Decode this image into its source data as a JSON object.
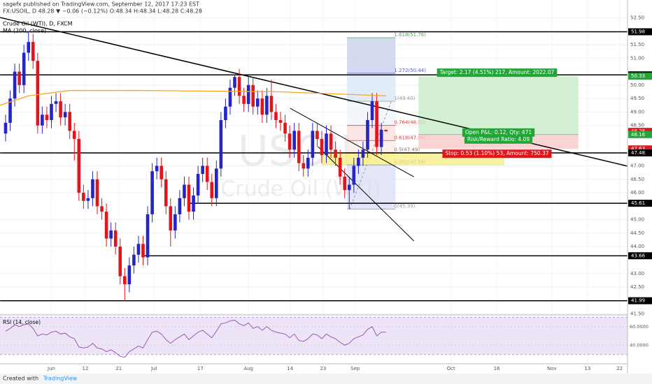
{
  "header": {
    "published": "sagefx published on TradingView.com, September 12, 2017 17:23 EST",
    "symbol": "FX:USOIL, D 48.28 ▼ −0.06 (−0.12%) O:48.34 H:48.34 L:48.28 C:48.28"
  },
  "footer": {
    "created": "Created with",
    "brand": "TradingView"
  },
  "chart_data": {
    "type": "candlestick",
    "title": "Crude Oil (WTI), D, FXCM",
    "ma_label": "MA (200, close)",
    "watermark": [
      "USOIL",
      "Crude Oil (WTI)"
    ],
    "xlim": [
      -1.22,
      135.72
    ],
    "ylim": [
      41.49,
      53.16
    ],
    "xticks": [
      {
        "value": 10,
        "label": "Jun"
      },
      {
        "value": 17.4,
        "label": "12"
      },
      {
        "value": 24.7,
        "label": "21"
      },
      {
        "value": 32.4,
        "label": "Jul"
      },
      {
        "value": 42.5,
        "label": "17"
      },
      {
        "value": 53,
        "label": "Aug"
      },
      {
        "value": 62.1,
        "label": "14"
      },
      {
        "value": 69.3,
        "label": "23"
      },
      {
        "value": 76.3,
        "label": "Sep"
      },
      {
        "value": 97.2,
        "label": "Oct"
      },
      {
        "value": 107.2,
        "label": "16"
      },
      {
        "value": 119.2,
        "label": "Nov"
      },
      {
        "value": 127,
        "label": "13"
      },
      {
        "value": 134,
        "label": "22"
      }
    ],
    "yticks": [
      {
        "value": 52.5,
        "label": "52.50"
      },
      {
        "value": 51.5,
        "label": "51.50"
      },
      {
        "value": 51,
        "label": "51.00"
      },
      {
        "value": 50,
        "label": "50.00"
      },
      {
        "value": 49.5,
        "label": "49.50"
      },
      {
        "value": 49,
        "label": "49.00"
      },
      {
        "value": 48.5,
        "label": "48.50"
      },
      {
        "value": 47,
        "label": "47.00"
      },
      {
        "value": 46.5,
        "label": "46.50"
      },
      {
        "value": 46,
        "label": "46.00"
      },
      {
        "value": 45,
        "label": "45.00"
      },
      {
        "value": 44.5,
        "label": "44.50"
      },
      {
        "value": 44,
        "label": "44.00"
      },
      {
        "value": 43,
        "label": "43.00"
      },
      {
        "value": 42.5,
        "label": "42.50"
      },
      {
        "value": 41.5,
        "label": "41.50"
      }
    ],
    "grid": true,
    "up_color": "#2424c8",
    "down_color": "#e3151c",
    "open": [
      48.2,
      48.6,
      49.5,
      50.5,
      50.0,
      51.2,
      51.6,
      50.9,
      48.5,
      48.9,
      48.7,
      49.3,
      49.4,
      48.8,
      49.0,
      48.3,
      48.0,
      46.0,
      45.7,
      45.8,
      46.5,
      45.5,
      45.3,
      44.3,
      44.6,
      44.0,
      42.9,
      42.6,
      43.3,
      43.7,
      44.1,
      43.6,
      45.2,
      46.8,
      47.0,
      46.5,
      45.5,
      44.6,
      45.2,
      45.8,
      46.3,
      45.3,
      45.9,
      46.7,
      47.0,
      46.4,
      45.8,
      46.9,
      48.7,
      49.2,
      49.9,
      50.3,
      49.6,
      49.3,
      50.0,
      49.2,
      49.5,
      48.9,
      49.6,
      49.0,
      48.7,
      48.6,
      48.2,
      47.6,
      48.3,
      47.1,
      46.9,
      47.3,
      48.3,
      48.0,
      47.4,
      48.2,
      47.6,
      47.3,
      46.6,
      46.1,
      46.3,
      47.0,
      47.3,
      47.6,
      48.7,
      49.4,
      47.7,
      48.34
    ],
    "high": [
      48.9,
      49.8,
      50.8,
      50.8,
      51.5,
      52.0,
      51.9,
      51.2,
      49.2,
      49.2,
      49.6,
      49.7,
      49.7,
      49.3,
      49.3,
      48.6,
      48.3,
      46.3,
      46.1,
      46.8,
      46.8,
      45.8,
      45.6,
      44.9,
      44.9,
      44.3,
      43.2,
      43.6,
      44.0,
      44.4,
      44.4,
      45.5,
      47.1,
      47.3,
      47.3,
      46.8,
      45.8,
      45.5,
      46.1,
      46.6,
      46.6,
      46.2,
      47.0,
      47.3,
      47.3,
      46.7,
      47.2,
      49.0,
      49.5,
      50.2,
      50.4,
      50.6,
      49.9,
      50.3,
      50.3,
      49.8,
      49.8,
      49.9,
      50.2,
      49.3,
      49.0,
      48.9,
      48.5,
      48.6,
      48.6,
      47.4,
      47.6,
      48.6,
      48.6,
      48.3,
      48.5,
      48.5,
      47.9,
      47.6,
      46.9,
      46.6,
      47.3,
      47.6,
      47.9,
      49.0,
      49.7,
      49.7,
      48.6,
      48.34
    ],
    "low": [
      47.9,
      48.3,
      49.2,
      49.7,
      49.7,
      50.9,
      50.6,
      48.2,
      48.2,
      48.4,
      48.4,
      49.0,
      48.5,
      48.5,
      48.0,
      47.2,
      45.7,
      45.4,
      45.4,
      45.5,
      45.2,
      45.0,
      44.0,
      44.0,
      43.7,
      42.6,
      42.0,
      42.3,
      43.0,
      43.4,
      43.3,
      43.3,
      44.9,
      46.5,
      46.2,
      45.2,
      44.0,
      44.3,
      44.9,
      45.5,
      45.0,
      45.0,
      45.6,
      46.4,
      46.1,
      45.5,
      45.5,
      46.6,
      48.4,
      48.9,
      49.6,
      49.3,
      49.0,
      49.0,
      48.9,
      48.9,
      48.6,
      48.6,
      48.7,
      48.4,
      48.3,
      47.9,
      47.3,
      47.3,
      46.8,
      46.6,
      46.6,
      47.0,
      47.7,
      47.1,
      47.1,
      47.3,
      47.0,
      46.3,
      45.8,
      45.4,
      46.0,
      46.7,
      47.0,
      47.3,
      48.4,
      47.4,
      47.4,
      48.28
    ],
    "close": [
      48.6,
      49.5,
      50.5,
      50.0,
      51.2,
      51.6,
      50.9,
      48.5,
      48.9,
      48.7,
      49.3,
      49.4,
      48.8,
      49.0,
      48.3,
      48.0,
      46.0,
      45.7,
      45.8,
      46.5,
      45.5,
      45.3,
      44.3,
      44.6,
      44.0,
      42.9,
      42.6,
      43.3,
      43.7,
      44.1,
      43.6,
      45.2,
      46.8,
      47.0,
      46.5,
      45.5,
      44.6,
      45.2,
      45.8,
      46.3,
      45.3,
      45.9,
      46.7,
      47.0,
      46.4,
      45.8,
      46.9,
      48.7,
      49.2,
      49.9,
      50.3,
      49.6,
      49.3,
      50.0,
      49.2,
      49.5,
      48.9,
      49.6,
      49.0,
      48.7,
      48.6,
      48.2,
      47.6,
      48.3,
      47.1,
      46.9,
      47.3,
      48.3,
      48.0,
      47.4,
      48.2,
      47.6,
      47.3,
      46.6,
      46.1,
      46.3,
      47.0,
      47.3,
      47.6,
      48.7,
      49.4,
      47.7,
      48.34,
      48.28
    ],
    "ma": {
      "color": "#f5a623",
      "x": [
        -1.2,
        5,
        14,
        29,
        60,
        83
      ],
      "values": [
        49.25,
        49.6,
        49.8,
        49.8,
        49.75,
        49.6
      ]
    },
    "hlines": [
      {
        "price": 51.98,
        "from": -1.2
      },
      {
        "price": 50.38,
        "from": -1.2
      },
      {
        "price": 47.48,
        "from": -1.2
      },
      {
        "price": 45.61,
        "from": 40
      },
      {
        "price": 43.66,
        "from": 30
      },
      {
        "price": 41.99,
        "from": -1.2
      }
    ],
    "trendlines": [
      {
        "x": [
          -1.2,
          135.7
        ],
        "y": [
          52.51,
          46.99
        ]
      },
      {
        "x": [
          62.1,
          89.1
        ],
        "y": [
          49.14,
          46.59
        ]
      },
      {
        "x": [
          68.2,
          89.1
        ],
        "y": [
          47.71,
          44.21
        ]
      }
    ],
    "fib": {
      "x": [
        74.5,
        85.1
      ],
      "levels": [
        {
          "price": 51.76,
          "label": "1.618(51.76)",
          "color": "#4caf50"
        },
        {
          "price": 50.44,
          "label": "1.272(50.44)",
          "color": "#5c5cd6"
        },
        {
          "price": 49.4,
          "label": "1(49.40)",
          "color": "#999999"
        },
        {
          "price": 48.5,
          "label": "0.764(48.50)",
          "color": "#e53935"
        },
        {
          "price": 47.94,
          "label": "0.618(47.94)",
          "color": "#e53935"
        },
        {
          "price": 47.49,
          "label": "0.5(47.49)",
          "color": "#8d6e63"
        },
        {
          "price": 47.04,
          "label": "0.382(47.04)",
          "color": "#3f51b5"
        },
        {
          "price": 45.39,
          "label": "0(45.39)",
          "color": "#999999"
        }
      ]
    },
    "zone": {
      "x": [
        69,
        108.7
      ],
      "y": [
        47.48,
        47.04
      ],
      "color": "#f7f08a"
    },
    "position": {
      "x": [
        90.1,
        125
      ],
      "target": 50.33,
      "entry": 48.16,
      "stop": 47.63,
      "target_label": "Target: 2.17 (4.51%) 217, Amount: 2022.07",
      "pnl_label": "Open P&L: 0.12, Qty: 471",
      "ratio_label": "Risk/Reward Ratio: 4.09",
      "stop_label": "Stop: 0.53 (1.10%) 53, Amount: 750.37"
    },
    "price_labels": [
      {
        "value": 51.98,
        "color": "#000000"
      },
      {
        "value": 50.38,
        "color": "#000000"
      },
      {
        "value": 50.33,
        "color": "#22a637"
      },
      {
        "value": 48.28,
        "color": "#e3151c"
      },
      {
        "value": 48.16,
        "color": "#22a637"
      },
      {
        "value": 47.63,
        "color": "#e3151c"
      },
      {
        "value": 47.48,
        "color": "#000000"
      },
      {
        "value": 45.61,
        "color": "#000000"
      },
      {
        "value": 43.66,
        "color": "#000000"
      },
      {
        "value": 41.99,
        "color": "#000000"
      }
    ],
    "rsi": {
      "title": "RSI (14, close)",
      "color": "#9b59b6",
      "ylim": [
        20,
        71.85
      ],
      "yticks": [
        {
          "value": 60,
          "label": "60.0000"
        },
        {
          "value": 40,
          "label": "40.0000"
        }
      ],
      "band": [
        30,
        70
      ],
      "values": [
        55,
        58,
        62,
        60,
        62,
        63,
        58,
        50,
        52,
        51,
        54,
        55,
        52,
        53,
        49,
        47,
        38,
        37,
        38,
        42,
        37,
        36,
        33,
        35,
        32,
        28,
        27,
        33,
        36,
        39,
        37,
        46,
        54,
        55,
        52,
        46,
        42,
        46,
        49,
        52,
        46,
        50,
        54,
        56,
        52,
        48,
        55,
        63,
        64,
        66,
        67,
        63,
        61,
        64,
        58,
        60,
        56,
        60,
        56,
        54,
        53,
        52,
        48,
        52,
        45,
        44,
        47,
        52,
        51,
        47,
        52,
        49,
        47,
        43,
        40,
        42,
        47,
        49,
        51,
        57,
        60,
        50,
        54,
        54
      ]
    }
  }
}
